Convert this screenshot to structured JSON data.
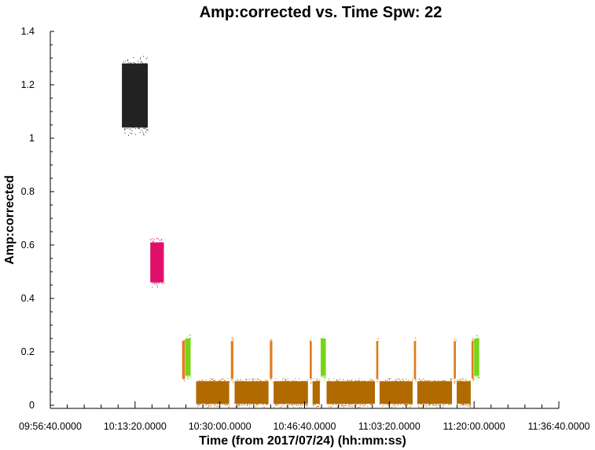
{
  "chart_data": {
    "type": "scatter",
    "title": "Amp:corrected vs. Time Spw: 22",
    "xlabel": "Time (from 2017/07/24) (hh:mm:ss)",
    "ylabel": "Amp:corrected",
    "xlim": [
      "09:56:40",
      "11:36:40"
    ],
    "ylim": [
      0,
      1.4
    ],
    "x_ticks": [
      "09:56:40.0000",
      "10:13:20.0000",
      "10:30:00.0000",
      "10:46:40.0000",
      "11:03:20.0000",
      "11:20:00.0000",
      "11:36:40.0000"
    ],
    "y_ticks": [
      "0",
      "0.2",
      "0.4",
      "0.6",
      "0.8",
      "1",
      "1.2",
      "1.4"
    ],
    "grid": false,
    "series": [
      {
        "color": "#222222",
        "clusters": [
          {
            "t0": "10:10:45",
            "t1": "10:15:50",
            "y0": 1.04,
            "y1": 1.28
          }
        ]
      },
      {
        "color": "#e0106a",
        "clusters": [
          {
            "t0": "10:16:20",
            "t1": "10:19:00",
            "y0": 0.46,
            "y1": 0.61
          }
        ]
      },
      {
        "color": "#e07d1e",
        "clusters": [
          {
            "t0": "10:22:35",
            "t1": "10:23:10",
            "y0": 0.1,
            "y1": 0.24
          },
          {
            "t0": "10:32:10",
            "t1": "10:32:40",
            "y0": 0.1,
            "y1": 0.24
          },
          {
            "t0": "10:39:50",
            "t1": "10:40:20",
            "y0": 0.1,
            "y1": 0.24
          },
          {
            "t0": "10:47:40",
            "t1": "10:48:05",
            "y0": 0.1,
            "y1": 0.24
          },
          {
            "t0": "11:00:45",
            "t1": "11:01:10",
            "y0": 0.1,
            "y1": 0.24
          },
          {
            "t0": "11:08:10",
            "t1": "11:08:35",
            "y0": 0.1,
            "y1": 0.24
          },
          {
            "t0": "11:16:00",
            "t1": "11:16:25",
            "y0": 0.1,
            "y1": 0.24
          },
          {
            "t0": "11:19:30",
            "t1": "11:19:55",
            "y0": 0.1,
            "y1": 0.24
          }
        ]
      },
      {
        "color": "#76d616",
        "clusters": [
          {
            "t0": "10:23:15",
            "t1": "10:24:15",
            "y0": 0.11,
            "y1": 0.25
          },
          {
            "t0": "10:49:50",
            "t1": "10:50:50",
            "y0": 0.11,
            "y1": 0.25
          },
          {
            "t0": "11:20:00",
            "t1": "11:21:00",
            "y0": 0.11,
            "y1": 0.25
          }
        ]
      },
      {
        "color": "#b06a00",
        "clusters": [
          {
            "t0": "10:25:20",
            "t1": "10:31:50",
            "y0": 0.005,
            "y1": 0.09
          },
          {
            "t0": "10:32:55",
            "t1": "10:39:35",
            "y0": 0.005,
            "y1": 0.09
          },
          {
            "t0": "10:40:35",
            "t1": "10:47:20",
            "y0": 0.005,
            "y1": 0.09
          },
          {
            "t0": "10:48:15",
            "t1": "10:49:40",
            "y0": 0.005,
            "y1": 0.09
          },
          {
            "t0": "10:51:00",
            "t1": "11:00:30",
            "y0": 0.005,
            "y1": 0.09
          },
          {
            "t0": "11:01:25",
            "t1": "11:07:55",
            "y0": 0.005,
            "y1": 0.09
          },
          {
            "t0": "11:08:50",
            "t1": "11:15:40",
            "y0": 0.005,
            "y1": 0.09
          },
          {
            "t0": "11:16:35",
            "t1": "11:19:20",
            "y0": 0.005,
            "y1": 0.09
          }
        ]
      }
    ]
  }
}
